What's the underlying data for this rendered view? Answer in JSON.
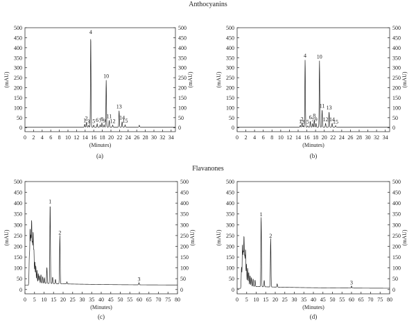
{
  "figure": {
    "section_titles": [
      "Anthocyanins",
      "Flavanones"
    ]
  },
  "chart_data": [
    {
      "type": "line",
      "panel_label": "(a)",
      "section": "Anthocyanins",
      "xlabel": "(Minutes)",
      "ylabel": "(mAU)",
      "xlim": [
        0,
        35
      ],
      "ylim": [
        -20,
        500
      ],
      "xticks": [
        0,
        2,
        4,
        6,
        8,
        10,
        12,
        14,
        16,
        18,
        20,
        22,
        24,
        26,
        28,
        30,
        32,
        34
      ],
      "yticks": [
        0,
        50,
        100,
        150,
        200,
        250,
        300,
        350,
        400,
        450,
        500
      ],
      "baseline": 3,
      "series": [
        {
          "peaks": [
            {
              "label": "1",
              "x": 13.9,
              "y": 17
            },
            {
              "label": "2",
              "x": 14.3,
              "y": 27
            },
            {
              "label": "3",
              "x": 14.8,
              "y": 12
            },
            {
              "label": "4",
              "x": 15.3,
              "y": 458
            },
            {
              "label": "5",
              "x": 16.0,
              "y": 13
            },
            {
              "label": "6",
              "x": 16.8,
              "y": 19
            },
            {
              "label": "7",
              "x": 17.5,
              "y": 14
            },
            {
              "label": "8",
              "x": 17.9,
              "y": 24
            },
            {
              "label": "9",
              "x": 18.4,
              "y": 14
            },
            {
              "label": "10",
              "x": 18.9,
              "y": 238
            },
            {
              "label": "11",
              "x": 19.6,
              "y": 37
            },
            {
              "label": "12",
              "x": 20.4,
              "y": 13
            },
            {
              "label": "13",
              "x": 21.9,
              "y": 85
            },
            {
              "label": "14",
              "x": 22.6,
              "y": 30
            },
            {
              "label": "15",
              "x": 23.3,
              "y": 14
            },
            {
              "label": "",
              "x": 26.6,
              "y": 12
            }
          ]
        }
      ]
    },
    {
      "type": "line",
      "panel_label": "(b)",
      "section": "Anthocyanins",
      "xlabel": "(Minutes)",
      "ylabel": "(mAU)",
      "xlim": [
        0,
        35
      ],
      "ylim": [
        -20,
        500
      ],
      "xticks": [
        0,
        2,
        4,
        6,
        8,
        10,
        12,
        14,
        16,
        18,
        20,
        22,
        24,
        26,
        28,
        30,
        32,
        34
      ],
      "yticks": [
        0,
        50,
        100,
        150,
        200,
        250,
        300,
        350,
        400,
        450,
        500
      ],
      "baseline": 3,
      "series": [
        {
          "peaks": [
            {
              "label": "1",
              "x": 14.5,
              "y": 12
            },
            {
              "label": "2",
              "x": 14.9,
              "y": 24
            },
            {
              "label": "3",
              "x": 15.2,
              "y": 9
            },
            {
              "label": "4",
              "x": 15.6,
              "y": 340
            },
            {
              "label": "5",
              "x": 16.2,
              "y": 9
            },
            {
              "label": "6",
              "x": 16.8,
              "y": 32
            },
            {
              "label": "7",
              "x": 17.3,
              "y": 20
            },
            {
              "label": "8",
              "x": 17.7,
              "y": 40
            },
            {
              "label": "9",
              "x": 18.1,
              "y": 22
            },
            {
              "label": "10",
              "x": 18.9,
              "y": 335
            },
            {
              "label": "11",
              "x": 19.5,
              "y": 90
            },
            {
              "label": "12",
              "x": 20.3,
              "y": 22
            },
            {
              "label": "13",
              "x": 21.1,
              "y": 80
            },
            {
              "label": "14",
              "x": 21.8,
              "y": 22
            },
            {
              "label": "15",
              "x": 22.6,
              "y": 10
            }
          ]
        }
      ]
    },
    {
      "type": "line",
      "panel_label": "(c)",
      "section": "Flavanones",
      "xlabel": "(Minutes)",
      "ylabel": "(mAU)",
      "xlim": [
        0,
        80
      ],
      "ylim": [
        -20,
        500
      ],
      "xticks": [
        0,
        5,
        10,
        15,
        20,
        25,
        30,
        35,
        40,
        45,
        50,
        55,
        60,
        65,
        70,
        75,
        80
      ],
      "yticks": [
        0,
        50,
        100,
        150,
        200,
        250,
        300,
        350,
        400,
        450,
        500
      ],
      "baseline": 20,
      "series": [
        {
          "peaks": [
            {
              "label": "",
              "x": 2.3,
              "y": 150
            },
            {
              "label": "",
              "x": 2.7,
              "y": 270
            },
            {
              "label": "",
              "x": 3.1,
              "y": 230
            },
            {
              "label": "",
              "x": 3.5,
              "y": 305
            },
            {
              "label": "",
              "x": 3.9,
              "y": 200
            },
            {
              "label": "",
              "x": 4.3,
              "y": 250
            },
            {
              "label": "",
              "x": 4.7,
              "y": 170
            },
            {
              "label": "",
              "x": 5.2,
              "y": 120
            },
            {
              "label": "",
              "x": 5.7,
              "y": 100
            },
            {
              "label": "",
              "x": 6.3,
              "y": 80
            },
            {
              "label": "",
              "x": 7.0,
              "y": 65
            },
            {
              "label": "",
              "x": 7.6,
              "y": 55
            },
            {
              "label": "",
              "x": 8.4,
              "y": 60
            },
            {
              "label": "",
              "x": 9.3,
              "y": 50
            },
            {
              "label": "",
              "x": 10.2,
              "y": 45
            },
            {
              "label": "",
              "x": 11.5,
              "y": 95
            },
            {
              "label": "1",
              "x": 13.2,
              "y": 390
            },
            {
              "label": "",
              "x": 14.5,
              "y": 50
            },
            {
              "label": "",
              "x": 16.0,
              "y": 40
            },
            {
              "label": "2",
              "x": 18.3,
              "y": 245
            },
            {
              "label": "",
              "x": 22.0,
              "y": 30
            },
            {
              "label": "3",
              "x": 59.8,
              "y": 30
            }
          ]
        }
      ]
    },
    {
      "type": "line",
      "panel_label": "(d)",
      "section": "Flavanones",
      "xlabel": "(Minutes)",
      "ylabel": "(mAU)",
      "xlim": [
        0,
        80
      ],
      "ylim": [
        -20,
        500
      ],
      "xticks": [
        0,
        5,
        10,
        15,
        20,
        25,
        30,
        35,
        40,
        45,
        50,
        55,
        60,
        65,
        70,
        75,
        80
      ],
      "yticks": [
        0,
        50,
        100,
        150,
        200,
        250,
        300,
        350,
        400,
        450,
        500
      ],
      "baseline": 5,
      "series": [
        {
          "peaks": [
            {
              "label": "",
              "x": 2.3,
              "y": 100
            },
            {
              "label": "",
              "x": 2.8,
              "y": 200
            },
            {
              "label": "",
              "x": 3.2,
              "y": 160
            },
            {
              "label": "",
              "x": 3.6,
              "y": 235
            },
            {
              "label": "",
              "x": 4.0,
              "y": 140
            },
            {
              "label": "",
              "x": 4.4,
              "y": 175
            },
            {
              "label": "",
              "x": 4.9,
              "y": 110
            },
            {
              "label": "",
              "x": 5.5,
              "y": 90
            },
            {
              "label": "",
              "x": 6.1,
              "y": 70
            },
            {
              "label": "",
              "x": 6.8,
              "y": 55
            },
            {
              "label": "",
              "x": 7.5,
              "y": 45
            },
            {
              "label": "",
              "x": 8.4,
              "y": 40
            },
            {
              "label": "",
              "x": 9.4,
              "y": 35
            },
            {
              "label": "1",
              "x": 12.6,
              "y": 330
            },
            {
              "label": "",
              "x": 14.2,
              "y": 35
            },
            {
              "label": "2",
              "x": 17.6,
              "y": 230
            },
            {
              "label": "",
              "x": 21.0,
              "y": 20
            },
            {
              "label": "3",
              "x": 60.0,
              "y": 14
            }
          ]
        }
      ]
    }
  ]
}
